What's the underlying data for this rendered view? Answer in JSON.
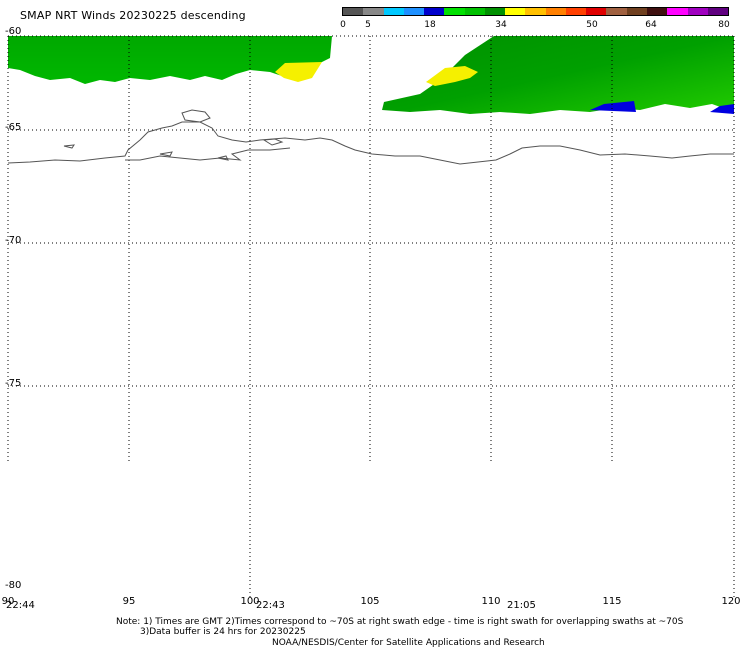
{
  "title": "SMAP NRT Winds  20230225 descending",
  "colorbar": {
    "labels": [
      "0",
      "5",
      "18",
      "34",
      "50",
      "64",
      "80"
    ],
    "colors": [
      "#555555",
      "#888888",
      "#00c8ff",
      "#1e90ff",
      "#0000cc",
      "#00e000",
      "#00c000",
      "#009000",
      "#ffff00",
      "#ffc000",
      "#ff8000",
      "#ff4000",
      "#e00000",
      "#a06040",
      "#704020",
      "#401010",
      "#ff00ff",
      "#a000c0",
      "#600080"
    ]
  },
  "axes": {
    "lat_labels": [
      "-60",
      "-65",
      "-70",
      "-75",
      "-80"
    ],
    "lon_labels": [
      "90",
      "95",
      "100",
      "105",
      "110",
      "115",
      "120"
    ],
    "times": [
      "22:44",
      "22:43",
      "21:05"
    ]
  },
  "notes": {
    "line1": "Note: 1) Times are GMT 2)Times correspond to ~70S at right swath edge - time is right swath for overlapping swaths at ~70S",
    "line2": "3)Data buffer is 24 hrs for 20230225",
    "line3": "NOAA/NESDIS/Center for Satellite Applications and Research"
  },
  "colors": {
    "wind_green": "#00a000",
    "wind_light_green": "#22cc00",
    "wind_yellow": "#f5f000",
    "wind_blue": "#0000e0",
    "coast": "#555555"
  }
}
